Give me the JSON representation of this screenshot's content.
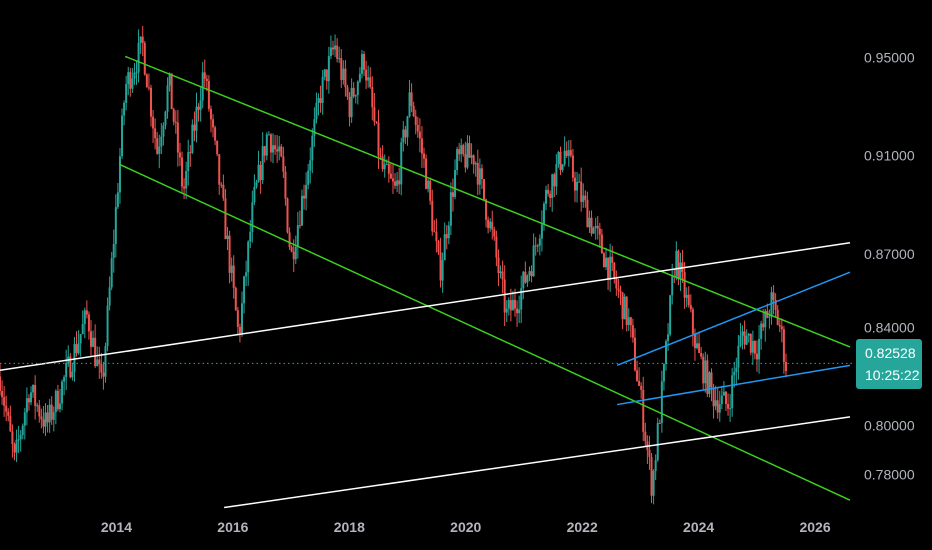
{
  "chart_data": {
    "type": "candlestick",
    "x_ticks": [
      "2014",
      "2016",
      "2018",
      "2020",
      "2022",
      "2024",
      "2026"
    ],
    "y_ticks": [
      "0.95000",
      "0.91000",
      "0.87000",
      "0.84000",
      "0.80000",
      "0.78000"
    ],
    "last_price": "0.82528",
    "countdown": "10:25:22",
    "y_range": [
      0.7655,
      0.9735
    ],
    "x_range": [
      2012.0,
      2026.6
    ],
    "colors": {
      "up": "#26a69a",
      "down": "#ef5350",
      "channel_green": "#3ccf1e",
      "channel_white": "#ffffff",
      "channel_blue": "#2196f3",
      "last_price": "#26a69a",
      "axis_text": "#b2b5be"
    },
    "trend_lines": [
      {
        "color": "#3ccf1e",
        "from": [
          2014.15,
          0.9505
        ],
        "to": [
          2026.6,
          0.832
        ]
      },
      {
        "color": "#3ccf1e",
        "from": [
          2014.05,
          0.9065
        ],
        "to": [
          2026.6,
          0.7695
        ]
      },
      {
        "color": "#ffffff",
        "from": [
          2012.0,
          0.8225
        ],
        "to": [
          2026.6,
          0.8745
        ]
      },
      {
        "color": "#ffffff",
        "from": [
          2015.85,
          0.7665
        ],
        "to": [
          2026.6,
          0.8035
        ]
      },
      {
        "color": "#2196f3",
        "from": [
          2022.6,
          0.8245
        ],
        "to": [
          2026.6,
          0.8625
        ]
      },
      {
        "color": "#2196f3",
        "from": [
          2022.6,
          0.8085
        ],
        "to": [
          2026.6,
          0.8245
        ]
      }
    ],
    "price_path": [
      [
        2012.0,
        0.82
      ],
      [
        2012.25,
        0.785
      ],
      [
        2012.5,
        0.815
      ],
      [
        2012.8,
        0.8
      ],
      [
        2013.0,
        0.812
      ],
      [
        2013.2,
        0.825
      ],
      [
        2013.5,
        0.845
      ],
      [
        2013.75,
        0.815
      ],
      [
        2013.95,
        0.875
      ],
      [
        2014.15,
        0.938
      ],
      [
        2014.45,
        0.955
      ],
      [
        2014.7,
        0.912
      ],
      [
        2014.9,
        0.94
      ],
      [
        2015.15,
        0.895
      ],
      [
        2015.5,
        0.945
      ],
      [
        2015.85,
        0.885
      ],
      [
        2016.1,
        0.836
      ],
      [
        2016.35,
        0.89
      ],
      [
        2016.6,
        0.92
      ],
      [
        2016.85,
        0.905
      ],
      [
        2017.0,
        0.868
      ],
      [
        2017.25,
        0.9
      ],
      [
        2017.5,
        0.935
      ],
      [
        2017.75,
        0.955
      ],
      [
        2018.0,
        0.93
      ],
      [
        2018.25,
        0.95
      ],
      [
        2018.55,
        0.905
      ],
      [
        2018.8,
        0.895
      ],
      [
        2019.05,
        0.935
      ],
      [
        2019.3,
        0.905
      ],
      [
        2019.55,
        0.862
      ],
      [
        2019.85,
        0.908
      ],
      [
        2020.15,
        0.91
      ],
      [
        2020.45,
        0.878
      ],
      [
        2020.7,
        0.845
      ],
      [
        2020.9,
        0.852
      ],
      [
        2021.15,
        0.868
      ],
      [
        2021.4,
        0.896
      ],
      [
        2021.7,
        0.912
      ],
      [
        2021.95,
        0.895
      ],
      [
        2022.2,
        0.88
      ],
      [
        2022.5,
        0.862
      ],
      [
        2022.8,
        0.842
      ],
      [
        2023.0,
        0.812
      ],
      [
        2023.2,
        0.775
      ],
      [
        2023.4,
        0.82
      ],
      [
        2023.6,
        0.87
      ],
      [
        2023.8,
        0.85
      ],
      [
        2024.0,
        0.828
      ],
      [
        2024.25,
        0.812
      ],
      [
        2024.5,
        0.808
      ],
      [
        2024.75,
        0.838
      ],
      [
        2025.0,
        0.832
      ],
      [
        2025.25,
        0.85
      ],
      [
        2025.4,
        0.84
      ],
      [
        2025.5,
        0.825
      ]
    ]
  }
}
